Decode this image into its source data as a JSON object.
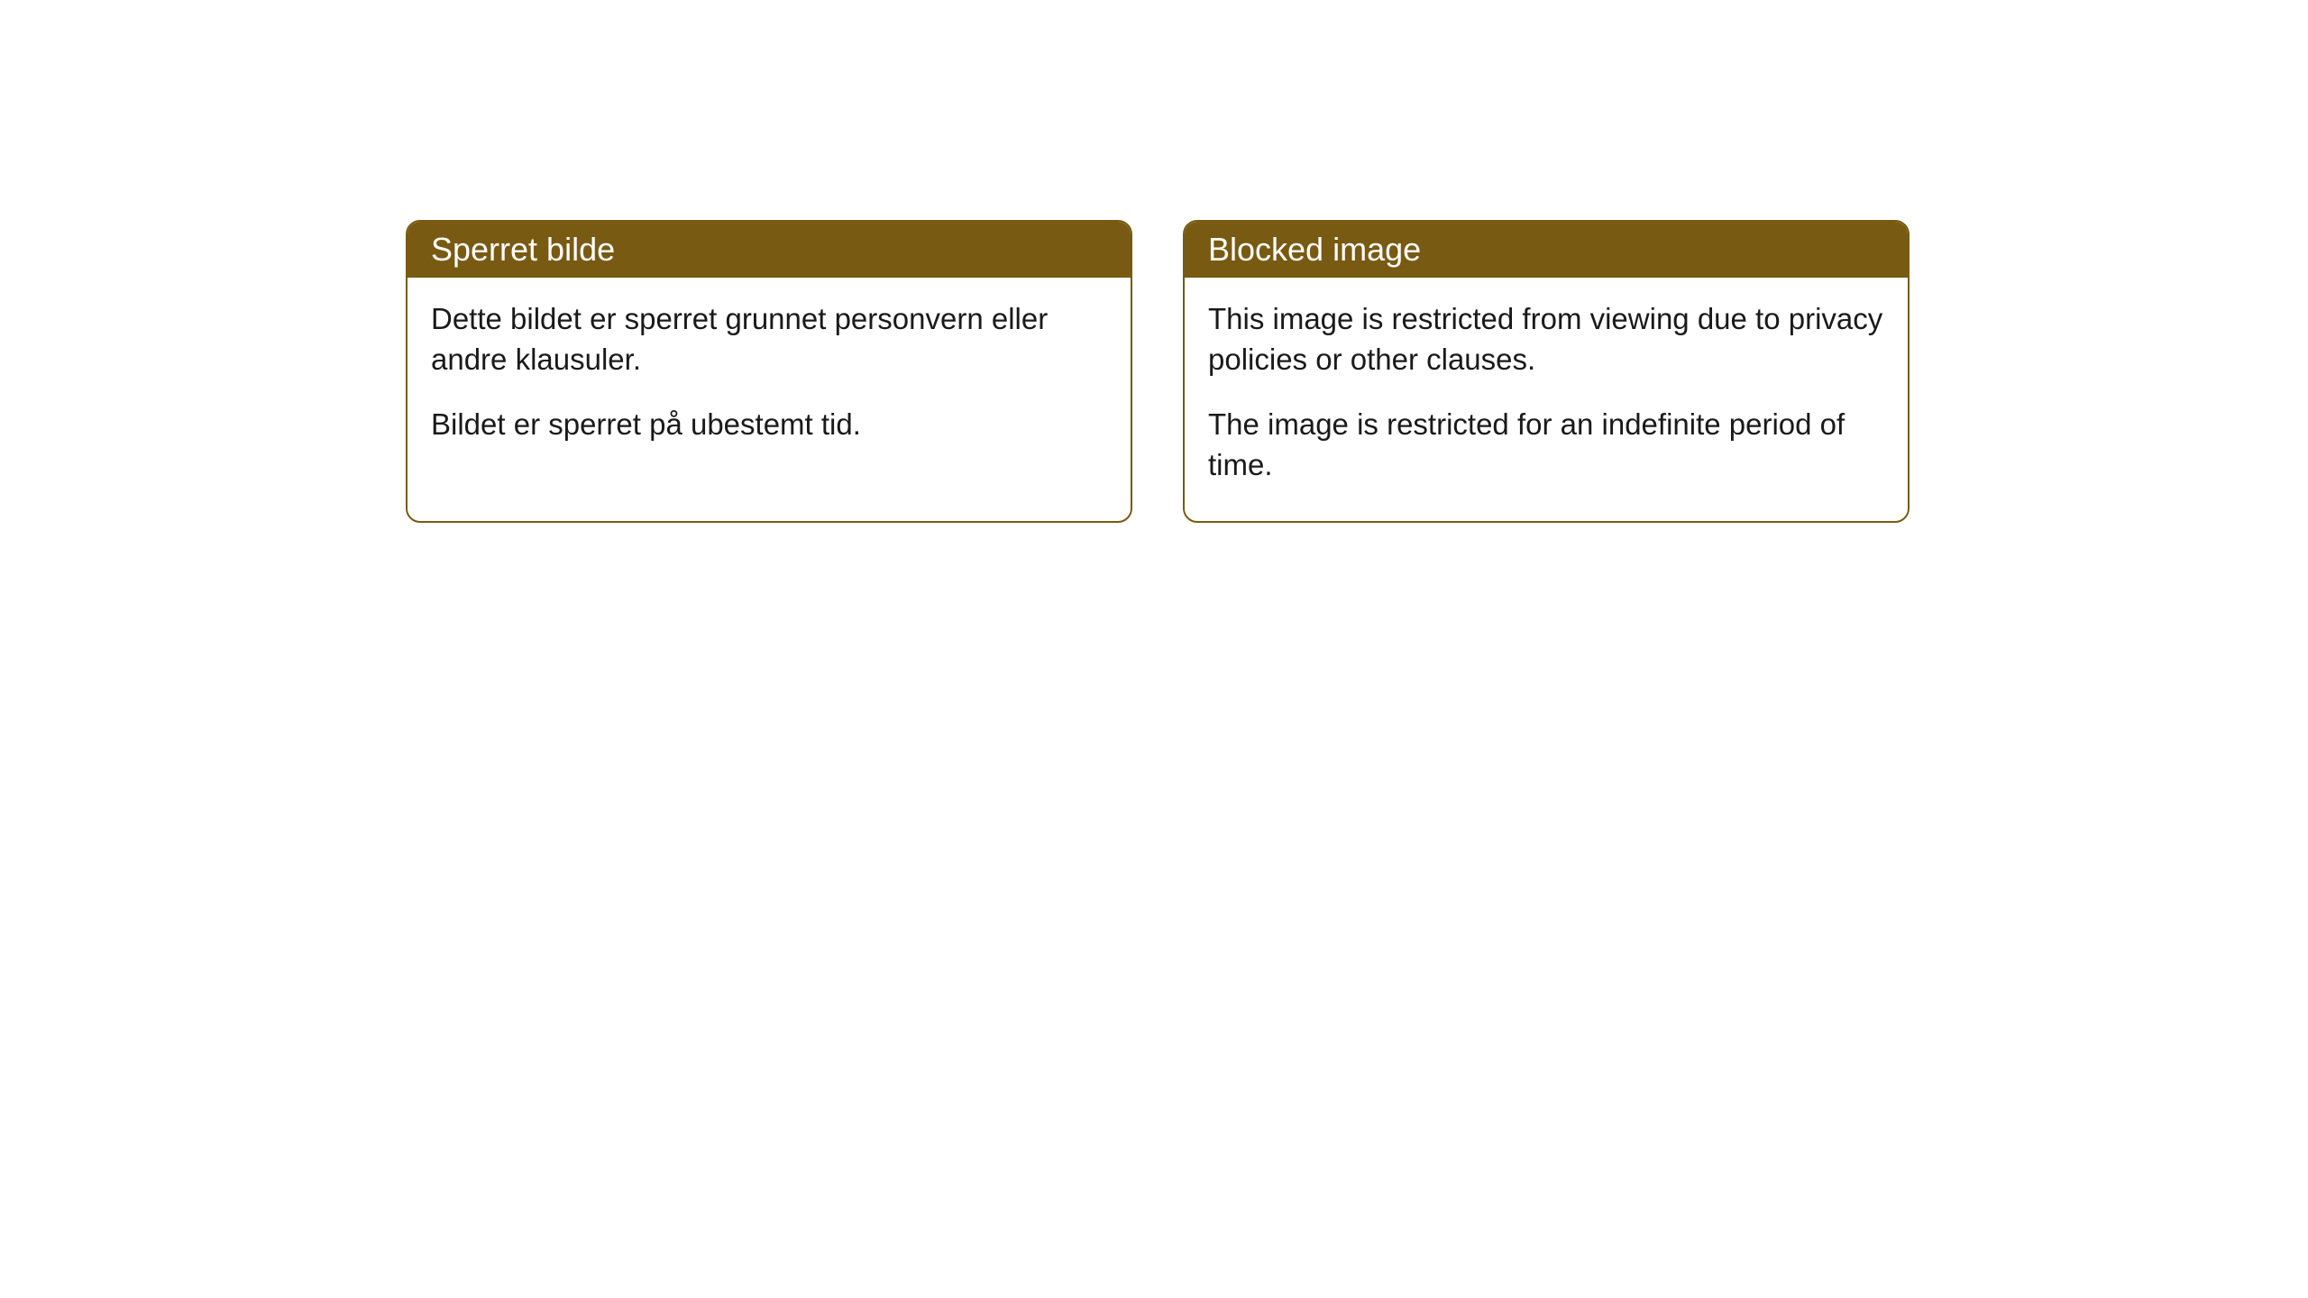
{
  "cards": [
    {
      "title": "Sperret bilde",
      "paragraph1": "Dette bildet er sperret grunnet personvern eller andre klausuler.",
      "paragraph2": "Bildet er sperret på ubestemt tid."
    },
    {
      "title": "Blocked image",
      "paragraph1": "This image is restricted from viewing due to privacy policies or other clauses.",
      "paragraph2": "The image is restricted for an indefinite period of time."
    }
  ],
  "style": {
    "header_bg": "#785a12",
    "header_text": "#ffffff",
    "border_color": "#785a12",
    "body_bg": "#ffffff",
    "body_text": "#1a1a1a",
    "border_radius": 16,
    "title_fontsize": 36,
    "body_fontsize": 33
  }
}
